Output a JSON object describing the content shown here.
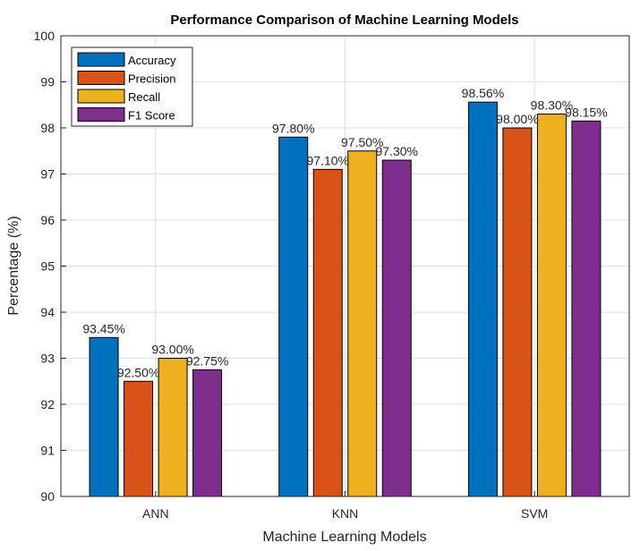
{
  "chart_data": {
    "type": "bar",
    "title": "Performance Comparison of Machine Learning Models",
    "xlabel": "Machine Learning Models",
    "ylabel": "Percentage (%)",
    "categories": [
      "ANN",
      "KNN",
      "SVM"
    ],
    "ylim": [
      90,
      100
    ],
    "yticks": [
      90,
      91,
      92,
      93,
      94,
      95,
      96,
      97,
      98,
      99,
      100
    ],
    "grid": true,
    "legend_position": "top-left",
    "series": [
      {
        "name": "Accuracy",
        "color": "#0072BD",
        "values": [
          93.45,
          97.8,
          98.56
        ],
        "labels": [
          "93.45%",
          "97.80%",
          "98.56%"
        ]
      },
      {
        "name": "Precision",
        "color": "#D95319",
        "values": [
          92.5,
          97.1,
          98.0
        ],
        "labels": [
          "92.50%",
          "97.10%",
          "98.00%"
        ]
      },
      {
        "name": "Recall",
        "color": "#EDB120",
        "values": [
          93.0,
          97.5,
          98.3
        ],
        "labels": [
          "93.00%",
          "97.50%",
          "98.30%"
        ]
      },
      {
        "name": "F1 Score",
        "color": "#7E2F8E",
        "values": [
          92.75,
          97.3,
          98.15
        ],
        "labels": [
          "92.75%",
          "97.30%",
          "98.15%"
        ]
      }
    ]
  }
}
